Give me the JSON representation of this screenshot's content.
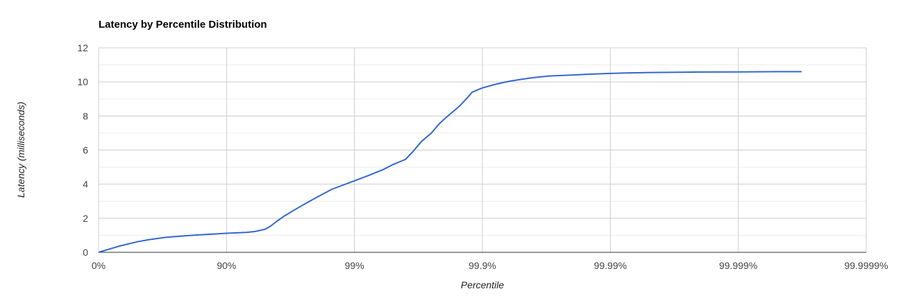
{
  "chart_data": {
    "type": "line",
    "title": "Latency by Percentile Distribution",
    "xlabel": "Percentile",
    "ylabel": "Latency (milliseconds)",
    "x_scale": "log-percentile",
    "x_ticks": [
      "0%",
      "90%",
      "99%",
      "99.9%",
      "99.99%",
      "99.999%",
      "99.9999%"
    ],
    "y_ticks": [
      "0",
      "2",
      "4",
      "6",
      "8",
      "10",
      "12"
    ],
    "ylim": [
      0,
      12
    ],
    "grid": true,
    "legend": "none",
    "series": [
      {
        "color": "#3366cc",
        "x": [
          0,
          30,
          50,
          60,
          70,
          80,
          85,
          88,
          90,
          92,
          93,
          94,
          95,
          95.5,
          96,
          96.5,
          97,
          97.5,
          98,
          98.5,
          99,
          99.25,
          99.4,
          99.5,
          99.6,
          99.65,
          99.7,
          99.75,
          99.78,
          99.8,
          99.85,
          99.87,
          99.88,
          99.9,
          99.92,
          99.93,
          99.94,
          99.95,
          99.96,
          99.97,
          99.98,
          99.985,
          99.99,
          99.992,
          99.995,
          99.997,
          99.998,
          99.999,
          99.9995,
          99.99968
        ],
        "y": [
          0,
          0.35,
          0.62,
          0.75,
          0.88,
          0.98,
          1.04,
          1.08,
          1.12,
          1.15,
          1.17,
          1.22,
          1.35,
          1.55,
          1.85,
          2.15,
          2.45,
          2.8,
          3.2,
          3.7,
          4.2,
          4.55,
          4.85,
          5.15,
          5.45,
          5.9,
          6.5,
          7.0,
          7.5,
          7.8,
          8.6,
          9.1,
          9.4,
          9.65,
          9.85,
          9.95,
          10.05,
          10.15,
          10.25,
          10.35,
          10.4,
          10.45,
          10.5,
          10.52,
          10.55,
          10.57,
          10.58,
          10.59,
          10.6,
          10.6
        ]
      }
    ]
  }
}
